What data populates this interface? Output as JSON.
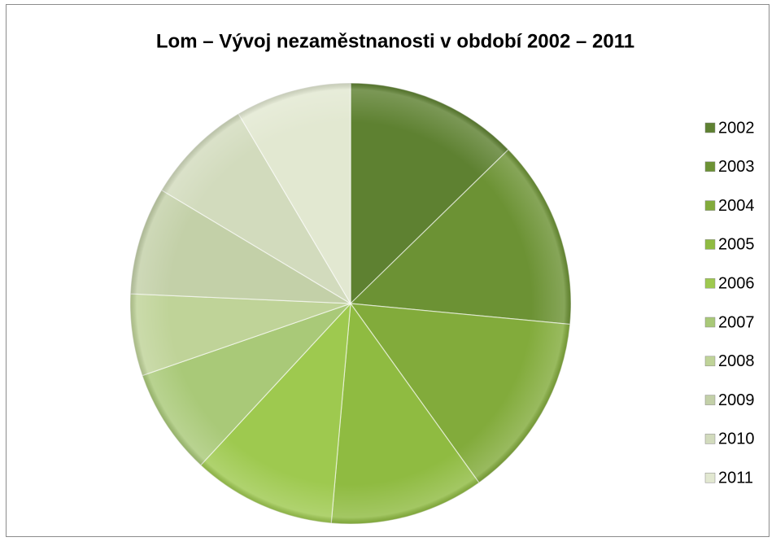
{
  "chart_data": {
    "type": "pie",
    "title": "Lom – Vývoj nezaměstnanosti v období 2002 – 2011",
    "categories": [
      "2002",
      "2003",
      "2004",
      "2005",
      "2006",
      "2007",
      "2008",
      "2009",
      "2010",
      "2011"
    ],
    "values": [
      12.7,
      13.8,
      13.6,
      11.3,
      10.5,
      7.8,
      6.0,
      7.9,
      7.9,
      8.5
    ],
    "colors": [
      "#5e8131",
      "#6c9234",
      "#82ab3b",
      "#8fbb41",
      "#9ec94f",
      "#a9c978",
      "#bfd398",
      "#c3d0a8",
      "#d2dbbd",
      "#e2e8d1"
    ],
    "legend": "right"
  }
}
